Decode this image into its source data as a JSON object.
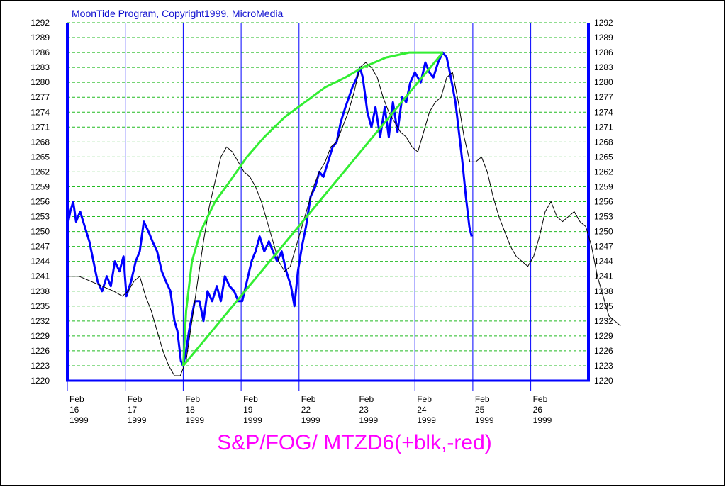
{
  "header": {
    "copyright": "MoonTide Program, Copyright1999, MicroMedia"
  },
  "chart_data": {
    "type": "line",
    "title": "S&P/FOG/ MTZD6(+blk,-red)",
    "ylim": [
      1220,
      1292
    ],
    "yticks": [
      1220,
      1223,
      1226,
      1229,
      1232,
      1235,
      1238,
      1241,
      1244,
      1247,
      1250,
      1253,
      1256,
      1259,
      1262,
      1265,
      1268,
      1271,
      1274,
      1277,
      1280,
      1283,
      1286,
      1289,
      1292
    ],
    "grid": true,
    "x_range": [
      0,
      9
    ],
    "x_ticks": [
      {
        "x": 0,
        "month": "Feb",
        "day": "16",
        "year": "1999"
      },
      {
        "x": 1,
        "month": "Feb",
        "day": "17",
        "year": "1999"
      },
      {
        "x": 2,
        "month": "Feb",
        "day": "18",
        "year": "1999"
      },
      {
        "x": 3,
        "month": "Feb",
        "day": "19",
        "year": "1999"
      },
      {
        "x": 4,
        "month": "Feb",
        "day": "22",
        "year": "1999"
      },
      {
        "x": 5,
        "month": "Feb",
        "day": "23",
        "year": "1999"
      },
      {
        "x": 6,
        "month": "Feb",
        "day": "24",
        "year": "1999"
      },
      {
        "x": 7,
        "month": "Feb",
        "day": "25",
        "year": "1999"
      },
      {
        "x": 8,
        "month": "Feb",
        "day": "26",
        "year": "1999"
      }
    ],
    "series": [
      {
        "color": "#0000ff",
        "points": [
          [
            0.0,
            1251
          ],
          [
            0.05,
            1254
          ],
          [
            0.1,
            1256
          ],
          [
            0.15,
            1252
          ],
          [
            0.22,
            1254
          ],
          [
            0.3,
            1251
          ],
          [
            0.38,
            1248
          ],
          [
            0.45,
            1244
          ],
          [
            0.52,
            1240
          ],
          [
            0.6,
            1238
          ],
          [
            0.68,
            1241
          ],
          [
            0.75,
            1239
          ],
          [
            0.82,
            1244
          ],
          [
            0.9,
            1242
          ],
          [
            0.97,
            1245
          ],
          [
            1.02,
            1237
          ],
          [
            1.1,
            1240
          ],
          [
            1.18,
            1244
          ],
          [
            1.25,
            1246
          ],
          [
            1.32,
            1252
          ],
          [
            1.4,
            1250
          ],
          [
            1.47,
            1248
          ],
          [
            1.55,
            1246
          ],
          [
            1.63,
            1242
          ],
          [
            1.7,
            1240
          ],
          [
            1.78,
            1238
          ],
          [
            1.85,
            1232
          ],
          [
            1.9,
            1230
          ],
          [
            1.96,
            1224
          ],
          [
            2.0,
            1223
          ],
          [
            2.05,
            1226
          ],
          [
            2.1,
            1230
          ],
          [
            2.15,
            1233
          ],
          [
            2.2,
            1236
          ],
          [
            2.28,
            1236
          ],
          [
            2.35,
            1232
          ],
          [
            2.42,
            1238
          ],
          [
            2.5,
            1236
          ],
          [
            2.58,
            1239
          ],
          [
            2.65,
            1236
          ],
          [
            2.72,
            1241
          ],
          [
            2.8,
            1239
          ],
          [
            2.88,
            1238
          ],
          [
            2.95,
            1236
          ],
          [
            3.02,
            1236
          ],
          [
            3.1,
            1240
          ],
          [
            3.18,
            1244
          ],
          [
            3.25,
            1246
          ],
          [
            3.32,
            1249
          ],
          [
            3.4,
            1246
          ],
          [
            3.48,
            1248
          ],
          [
            3.55,
            1246
          ],
          [
            3.62,
            1244
          ],
          [
            3.7,
            1246
          ],
          [
            3.78,
            1242
          ],
          [
            3.86,
            1239
          ],
          [
            3.92,
            1235
          ],
          [
            3.98,
            1242
          ],
          [
            4.05,
            1247
          ],
          [
            4.12,
            1251
          ],
          [
            4.2,
            1257
          ],
          [
            4.28,
            1259
          ],
          [
            4.35,
            1262
          ],
          [
            4.42,
            1261
          ],
          [
            4.5,
            1264
          ],
          [
            4.58,
            1267
          ],
          [
            4.65,
            1268
          ],
          [
            4.72,
            1272
          ],
          [
            4.8,
            1275
          ],
          [
            4.86,
            1277
          ],
          [
            4.92,
            1279
          ],
          [
            5.0,
            1281
          ],
          [
            5.05,
            1283
          ],
          [
            5.1,
            1281
          ],
          [
            5.18,
            1274
          ],
          [
            5.25,
            1271
          ],
          [
            5.32,
            1275
          ],
          [
            5.4,
            1269
          ],
          [
            5.48,
            1275
          ],
          [
            5.55,
            1269
          ],
          [
            5.62,
            1276
          ],
          [
            5.7,
            1270
          ],
          [
            5.78,
            1277
          ],
          [
            5.85,
            1276
          ],
          [
            5.92,
            1280
          ],
          [
            6.0,
            1282
          ],
          [
            6.05,
            1281
          ],
          [
            6.1,
            1280
          ],
          [
            6.18,
            1284
          ],
          [
            6.25,
            1282
          ],
          [
            6.32,
            1281
          ],
          [
            6.4,
            1284
          ],
          [
            6.48,
            1286
          ],
          [
            6.55,
            1285
          ],
          [
            6.62,
            1281
          ],
          [
            6.7,
            1276
          ],
          [
            6.76,
            1270
          ],
          [
            6.82,
            1264
          ],
          [
            6.88,
            1257
          ],
          [
            6.94,
            1251
          ],
          [
            6.98,
            1249
          ]
        ]
      },
      {
        "color": "#000000",
        "points": [
          [
            0.0,
            1241
          ],
          [
            0.2,
            1241
          ],
          [
            0.4,
            1240
          ],
          [
            0.6,
            1239
          ],
          [
            0.8,
            1238
          ],
          [
            0.95,
            1237
          ],
          [
            1.05,
            1238
          ],
          [
            1.15,
            1240
          ],
          [
            1.25,
            1241
          ],
          [
            1.35,
            1237
          ],
          [
            1.45,
            1234
          ],
          [
            1.55,
            1230
          ],
          [
            1.65,
            1226
          ],
          [
            1.75,
            1223
          ],
          [
            1.85,
            1221
          ],
          [
            1.95,
            1221
          ],
          [
            2.05,
            1224
          ],
          [
            2.15,
            1232
          ],
          [
            2.25,
            1240
          ],
          [
            2.35,
            1248
          ],
          [
            2.45,
            1255
          ],
          [
            2.55,
            1260
          ],
          [
            2.65,
            1265
          ],
          [
            2.75,
            1267
          ],
          [
            2.85,
            1266
          ],
          [
            2.95,
            1264
          ],
          [
            3.05,
            1262
          ],
          [
            3.15,
            1261
          ],
          [
            3.25,
            1259
          ],
          [
            3.35,
            1256
          ],
          [
            3.45,
            1252
          ],
          [
            3.55,
            1248
          ],
          [
            3.65,
            1244
          ],
          [
            3.75,
            1242
          ],
          [
            3.85,
            1243
          ],
          [
            3.95,
            1247
          ],
          [
            4.05,
            1251
          ],
          [
            4.15,
            1255
          ],
          [
            4.25,
            1259
          ],
          [
            4.35,
            1262
          ],
          [
            4.45,
            1264
          ],
          [
            4.55,
            1267
          ],
          [
            4.65,
            1268
          ],
          [
            4.75,
            1271
          ],
          [
            4.85,
            1274
          ],
          [
            4.95,
            1278
          ],
          [
            5.05,
            1283
          ],
          [
            5.15,
            1284
          ],
          [
            5.25,
            1283
          ],
          [
            5.35,
            1281
          ],
          [
            5.45,
            1277
          ],
          [
            5.55,
            1274
          ],
          [
            5.65,
            1272
          ],
          [
            5.75,
            1270
          ],
          [
            5.85,
            1269
          ],
          [
            5.95,
            1267
          ],
          [
            6.05,
            1266
          ],
          [
            6.15,
            1270
          ],
          [
            6.25,
            1274
          ],
          [
            6.35,
            1276
          ],
          [
            6.45,
            1277
          ],
          [
            6.55,
            1281
          ],
          [
            6.65,
            1282
          ],
          [
            6.75,
            1276
          ],
          [
            6.85,
            1269
          ],
          [
            6.95,
            1264
          ],
          [
            7.05,
            1264
          ],
          [
            7.15,
            1265
          ],
          [
            7.25,
            1262
          ],
          [
            7.35,
            1257
          ],
          [
            7.45,
            1253
          ],
          [
            7.55,
            1250
          ],
          [
            7.65,
            1247
          ],
          [
            7.75,
            1245
          ],
          [
            7.85,
            1244
          ],
          [
            7.95,
            1243
          ],
          [
            8.05,
            1245
          ],
          [
            8.15,
            1249
          ],
          [
            8.25,
            1254
          ],
          [
            8.35,
            1256
          ],
          [
            8.45,
            1253
          ],
          [
            8.55,
            1252
          ],
          [
            8.65,
            1253
          ],
          [
            8.75,
            1254
          ],
          [
            8.85,
            1252
          ],
          [
            8.95,
            1251
          ],
          [
            9.05,
            1247
          ],
          [
            9.15,
            1241
          ],
          [
            9.25,
            1237
          ],
          [
            9.35,
            1233
          ],
          [
            9.45,
            1232
          ],
          [
            9.55,
            1231
          ]
        ]
      },
      {
        "color": "#33ee33",
        "points": [
          [
            2.0,
            1223
          ],
          [
            2.05,
            1234
          ],
          [
            2.15,
            1244
          ],
          [
            2.3,
            1250
          ],
          [
            2.55,
            1256
          ],
          [
            2.8,
            1260
          ],
          [
            3.1,
            1265
          ],
          [
            3.4,
            1269
          ],
          [
            3.75,
            1273
          ],
          [
            4.1,
            1276
          ],
          [
            4.45,
            1279
          ],
          [
            4.8,
            1281
          ],
          [
            5.1,
            1283
          ],
          [
            5.5,
            1285
          ],
          [
            5.9,
            1286
          ],
          [
            6.3,
            1286
          ],
          [
            6.48,
            1286
          ]
        ]
      },
      {
        "color": "#33ee33",
        "points": [
          [
            2.0,
            1223
          ],
          [
            6.48,
            1286
          ]
        ]
      }
    ]
  }
}
